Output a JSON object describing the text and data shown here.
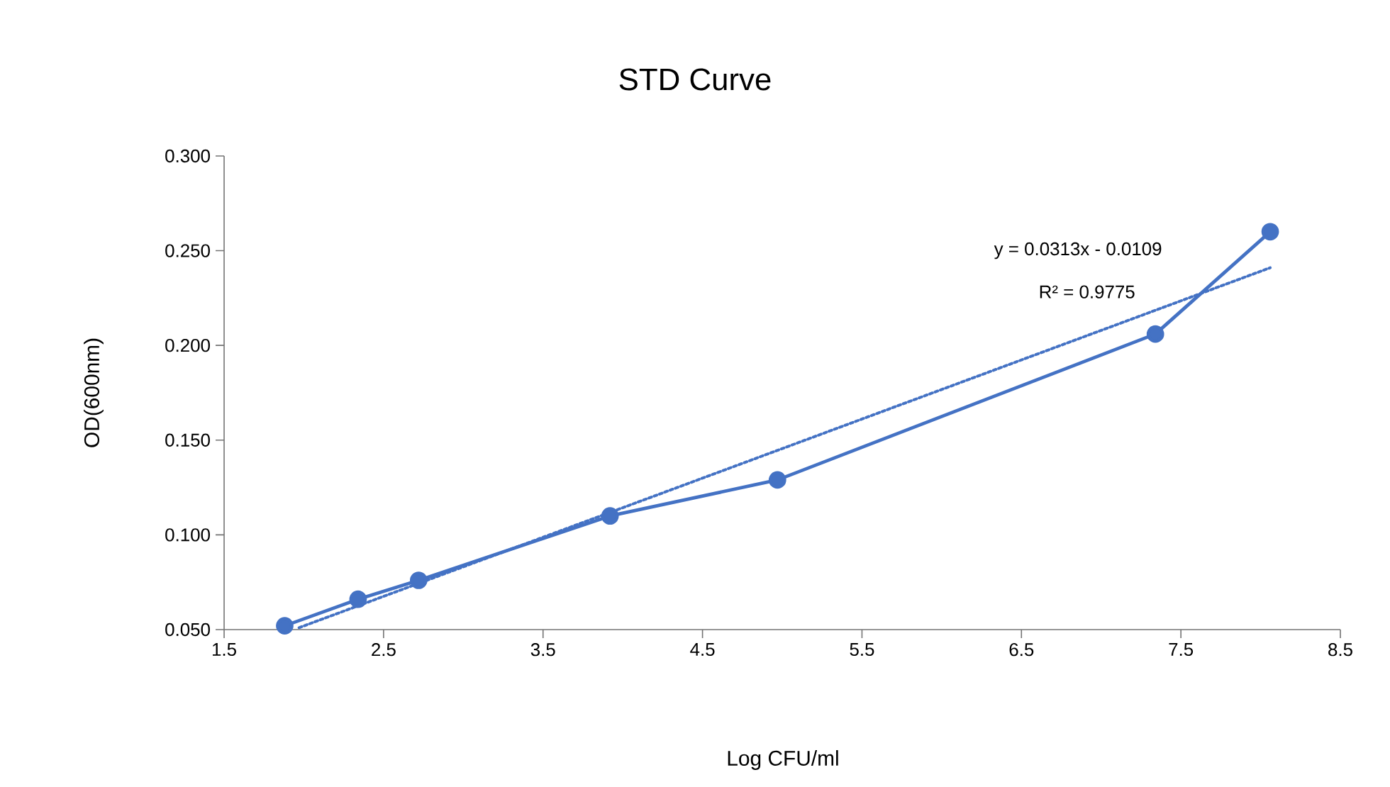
{
  "chart_data": {
    "type": "line",
    "title": "STD Curve",
    "xlabel": "Log CFU/ml",
    "ylabel": "OD(600nm)",
    "xlim": [
      1.5,
      8.5
    ],
    "xticks": [
      1.5,
      2.5,
      3.5,
      4.5,
      5.5,
      6.5,
      7.5,
      8.5
    ],
    "ylim": [
      0.05,
      0.3
    ],
    "yticks": [
      {
        "value": 0.05,
        "label": "0.050"
      },
      {
        "value": 0.1,
        "label": "0.100"
      },
      {
        "value": 0.15,
        "label": "0.150"
      },
      {
        "value": 0.2,
        "label": "0.200"
      },
      {
        "value": 0.25,
        "label": "0.250"
      },
      {
        "value": 0.3,
        "label": "0.300"
      }
    ],
    "series": [
      {
        "color": "#4472c4",
        "marker": "circle",
        "line_style": "solid",
        "x": [
          1.88,
          2.34,
          2.72,
          3.92,
          4.97,
          7.34,
          8.06
        ],
        "values": [
          0.052,
          0.066,
          0.076,
          0.11,
          0.129,
          0.206,
          0.26
        ]
      },
      {
        "type": "line",
        "color": "#4472c4",
        "marker": "none",
        "line_style": "dotted",
        "x": [
          1.97,
          8.06
        ],
        "values": [
          0.051,
          0.241
        ]
      }
    ],
    "annotations": [
      "y = 0.0313x - 0.0109",
      "R² = 0.9775"
    ]
  }
}
